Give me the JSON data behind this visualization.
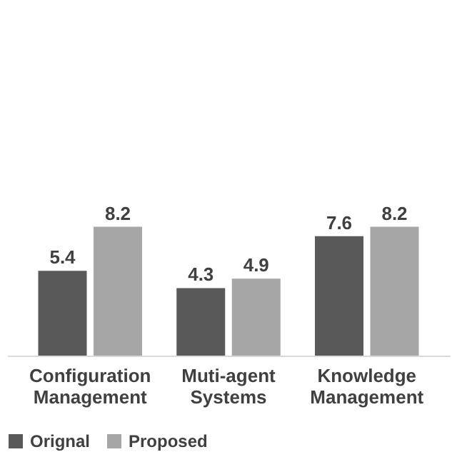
{
  "chart_data": {
    "type": "bar",
    "categories": [
      "Configuration Management",
      "Muti-agent Systems",
      "Knowledge Management"
    ],
    "series": [
      {
        "name": "Orignal",
        "color": "#595959",
        "values": [
          5.4,
          4.3,
          7.6
        ]
      },
      {
        "name": "Proposed",
        "color": "#a6a6a6",
        "values": [
          8.2,
          4.9,
          8.2
        ]
      }
    ],
    "data_labels": true,
    "grid": false,
    "legend": "bottom"
  }
}
